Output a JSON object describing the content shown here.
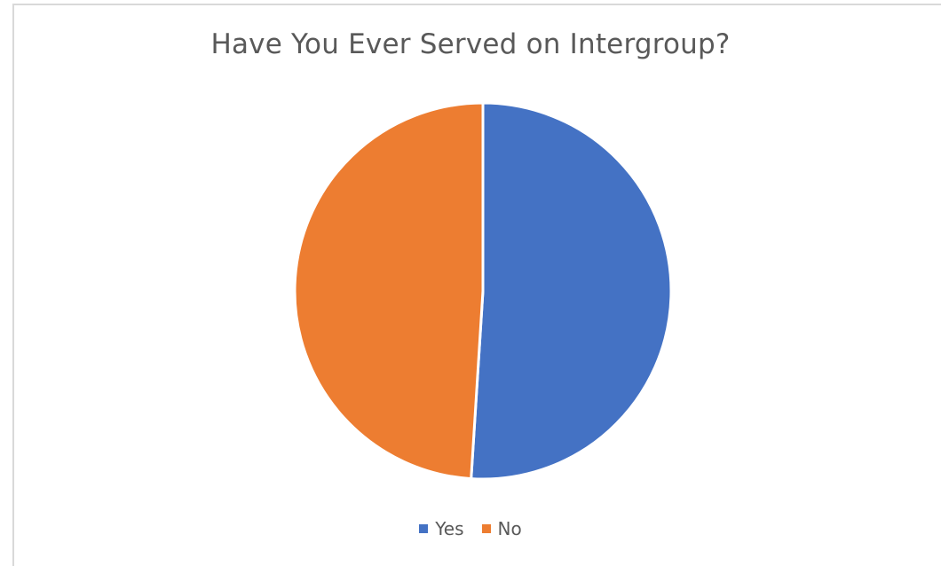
{
  "chart_data": {
    "type": "pie",
    "title": "Have You Ever Served on Intergroup?",
    "categories": [
      "Yes",
      "No"
    ],
    "values": [
      51,
      49
    ],
    "colors": [
      "#4472c4",
      "#ed7d31"
    ],
    "legend_position": "bottom"
  }
}
